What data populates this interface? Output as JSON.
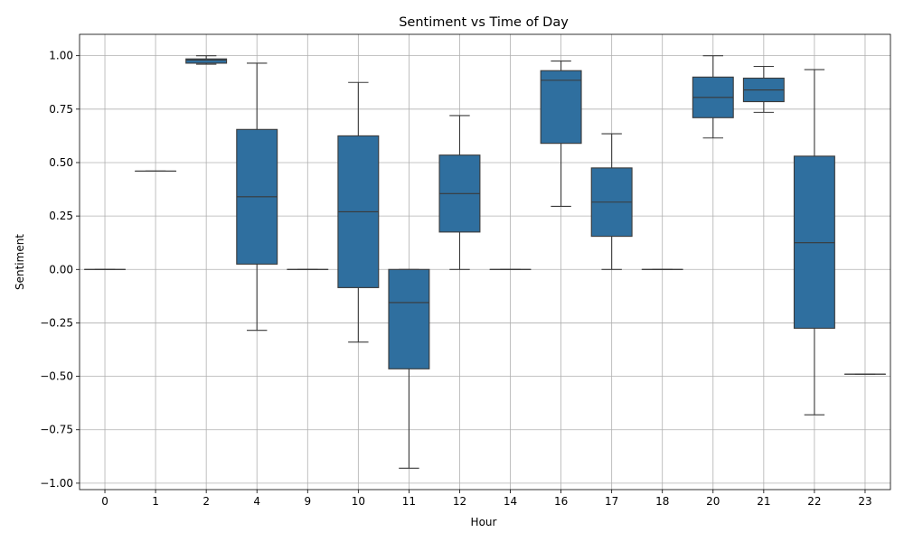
{
  "chart_data": {
    "type": "box",
    "title": "Sentiment vs Time of Day",
    "xlabel": "Hour",
    "ylabel": "Sentiment",
    "ylim": [
      -1.03,
      1.1
    ],
    "yticks": [
      -1.0,
      -0.75,
      -0.5,
      -0.25,
      0.0,
      0.25,
      0.5,
      0.75,
      1.0
    ],
    "ytick_labels": [
      "−1.00",
      "−0.75",
      "−0.50",
      "−0.25",
      "0.00",
      "0.25",
      "0.50",
      "0.75",
      "1.00"
    ],
    "grid": true,
    "box_color": "#2f6f9f",
    "line_color": "#3a3a3a",
    "categories": [
      "0",
      "1",
      "2",
      "4",
      "9",
      "10",
      "11",
      "12",
      "14",
      "16",
      "17",
      "18",
      "20",
      "21",
      "22",
      "23"
    ],
    "boxes": [
      {
        "category": "0",
        "whislo": 0.0,
        "q1": 0.0,
        "median": 0.0,
        "q3": 0.0,
        "whishi": 0.0
      },
      {
        "category": "1",
        "whislo": 0.46,
        "q1": 0.46,
        "median": 0.46,
        "q3": 0.46,
        "whishi": 0.46
      },
      {
        "category": "2",
        "whislo": 0.96,
        "q1": 0.965,
        "median": 0.98,
        "q3": 0.985,
        "whishi": 1.0
      },
      {
        "category": "4",
        "whislo": -0.285,
        "q1": 0.025,
        "median": 0.34,
        "q3": 0.655,
        "whishi": 0.965
      },
      {
        "category": "9",
        "whislo": 0.0,
        "q1": 0.0,
        "median": 0.0,
        "q3": 0.0,
        "whishi": 0.0
      },
      {
        "category": "10",
        "whislo": -0.34,
        "q1": -0.085,
        "median": 0.27,
        "q3": 0.625,
        "whishi": 0.875
      },
      {
        "category": "11",
        "whislo": -0.93,
        "q1": -0.465,
        "median": -0.155,
        "q3": 0.0,
        "whishi": 0.0
      },
      {
        "category": "12",
        "whislo": 0.0,
        "q1": 0.175,
        "median": 0.355,
        "q3": 0.535,
        "whishi": 0.72
      },
      {
        "category": "14",
        "whislo": 0.0,
        "q1": 0.0,
        "median": 0.0,
        "q3": 0.0,
        "whishi": 0.0
      },
      {
        "category": "16",
        "whislo": 0.295,
        "q1": 0.59,
        "median": 0.885,
        "q3": 0.93,
        "whishi": 0.975
      },
      {
        "category": "17",
        "whislo": 0.0,
        "q1": 0.155,
        "median": 0.315,
        "q3": 0.475,
        "whishi": 0.635
      },
      {
        "category": "18",
        "whislo": 0.0,
        "q1": 0.0,
        "median": 0.0,
        "q3": 0.0,
        "whishi": 0.0
      },
      {
        "category": "20",
        "whislo": 0.615,
        "q1": 0.71,
        "median": 0.805,
        "q3": 0.9,
        "whishi": 1.0
      },
      {
        "category": "21",
        "whislo": 0.735,
        "q1": 0.785,
        "median": 0.84,
        "q3": 0.895,
        "whishi": 0.95
      },
      {
        "category": "22",
        "whislo": -0.68,
        "q1": -0.275,
        "median": 0.125,
        "q3": 0.53,
        "whishi": 0.935
      },
      {
        "category": "23",
        "whislo": -0.49,
        "q1": -0.49,
        "median": -0.49,
        "q3": -0.49,
        "whishi": -0.49
      }
    ]
  }
}
